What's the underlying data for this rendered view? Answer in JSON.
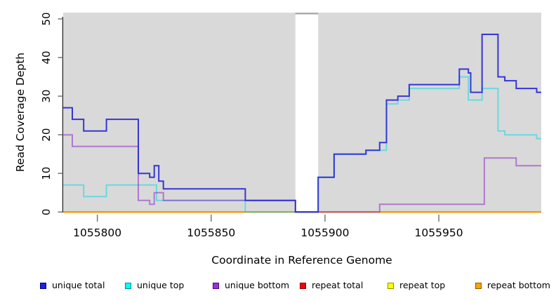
{
  "chart_data": {
    "type": "line",
    "subtype": "step-coverage",
    "title": "",
    "xlabel": "Coordinate in Reference Genome",
    "ylabel": "Read Coverage Depth",
    "xlim": [
      1055785,
      1055995
    ],
    "ylim": [
      0,
      50
    ],
    "x_ticks": [
      1055800,
      1055850,
      1055900,
      1055950
    ],
    "y_ticks": [
      0,
      10,
      20,
      30,
      40,
      50
    ],
    "grid": false,
    "plot_background": "#D9D9D9",
    "gap_region": {
      "from": 1055887,
      "to": 1055897,
      "fill": "#FFFFFF",
      "top_strip_color": "#ABABAB"
    },
    "legend_position": "bottom",
    "series": [
      {
        "name": "repeat total",
        "color": "rgba(205,0,0,0.9)",
        "steps": [
          [
            1055785,
            0
          ]
        ]
      },
      {
        "name": "repeat top",
        "color": "rgba(235,235,0,0.9)",
        "steps": [
          [
            1055785,
            0
          ]
        ]
      },
      {
        "name": "repeat bottom",
        "color": "rgba(255,140,0,0.85)",
        "steps": [
          [
            1055785,
            0
          ]
        ]
      },
      {
        "name": "unique top",
        "color": "rgba(0,215,228,0.5)",
        "steps": [
          [
            1055785,
            7
          ],
          [
            1055794,
            4
          ],
          [
            1055804,
            7
          ],
          [
            1055826,
            3
          ],
          [
            1055865,
            0
          ],
          [
            1055897,
            9
          ],
          [
            1055904,
            15
          ],
          [
            1055918,
            16
          ],
          [
            1055927,
            28
          ],
          [
            1055932,
            29
          ],
          [
            1055937,
            32
          ],
          [
            1055959,
            35
          ],
          [
            1055963,
            29
          ],
          [
            1055969,
            32
          ],
          [
            1055976,
            21
          ],
          [
            1055979,
            20
          ],
          [
            1055993,
            19
          ]
        ]
      },
      {
        "name": "unique bottom",
        "color": "rgba(140,40,200,0.55)",
        "steps": [
          [
            1055785,
            20
          ],
          [
            1055789,
            17
          ],
          [
            1055818,
            3
          ],
          [
            1055823,
            2
          ],
          [
            1055825,
            5
          ],
          [
            1055829,
            3
          ],
          [
            1055887,
            0
          ],
          [
            1055924,
            2
          ],
          [
            1055970,
            14
          ],
          [
            1055984,
            12
          ]
        ]
      },
      {
        "name": "unique total",
        "color": "rgba(45,45,212,0.95)",
        "steps": [
          [
            1055785,
            27
          ],
          [
            1055789,
            24
          ],
          [
            1055794,
            21
          ],
          [
            1055804,
            24
          ],
          [
            1055818,
            10
          ],
          [
            1055823,
            9
          ],
          [
            1055825,
            12
          ],
          [
            1055827,
            8
          ],
          [
            1055829,
            6
          ],
          [
            1055865,
            3
          ],
          [
            1055887,
            0
          ],
          [
            1055897,
            9
          ],
          [
            1055904,
            15
          ],
          [
            1055918,
            16
          ],
          [
            1055924,
            18
          ],
          [
            1055927,
            29
          ],
          [
            1055932,
            30
          ],
          [
            1055937,
            33
          ],
          [
            1055959,
            37
          ],
          [
            1055963,
            36
          ],
          [
            1055964,
            31
          ],
          [
            1055969,
            46
          ],
          [
            1055976,
            35
          ],
          [
            1055979,
            34
          ],
          [
            1055984,
            32
          ],
          [
            1055993,
            31
          ]
        ]
      }
    ],
    "legend": [
      {
        "label": "unique total",
        "fill": "#1E1EE6",
        "border": "#000080"
      },
      {
        "label": "unique top",
        "fill": "#00FFFF",
        "border": "#008B8B"
      },
      {
        "label": "unique bottom",
        "fill": "#9933D3",
        "border": "#4B0082"
      },
      {
        "label": "repeat total",
        "fill": "#FF0000",
        "border": "#8B0000"
      },
      {
        "label": "repeat top",
        "fill": "#FFFF00",
        "border": "#8F8F00"
      },
      {
        "label": "repeat bottom",
        "fill": "#FFA500",
        "border": "#8B5A00"
      }
    ]
  }
}
